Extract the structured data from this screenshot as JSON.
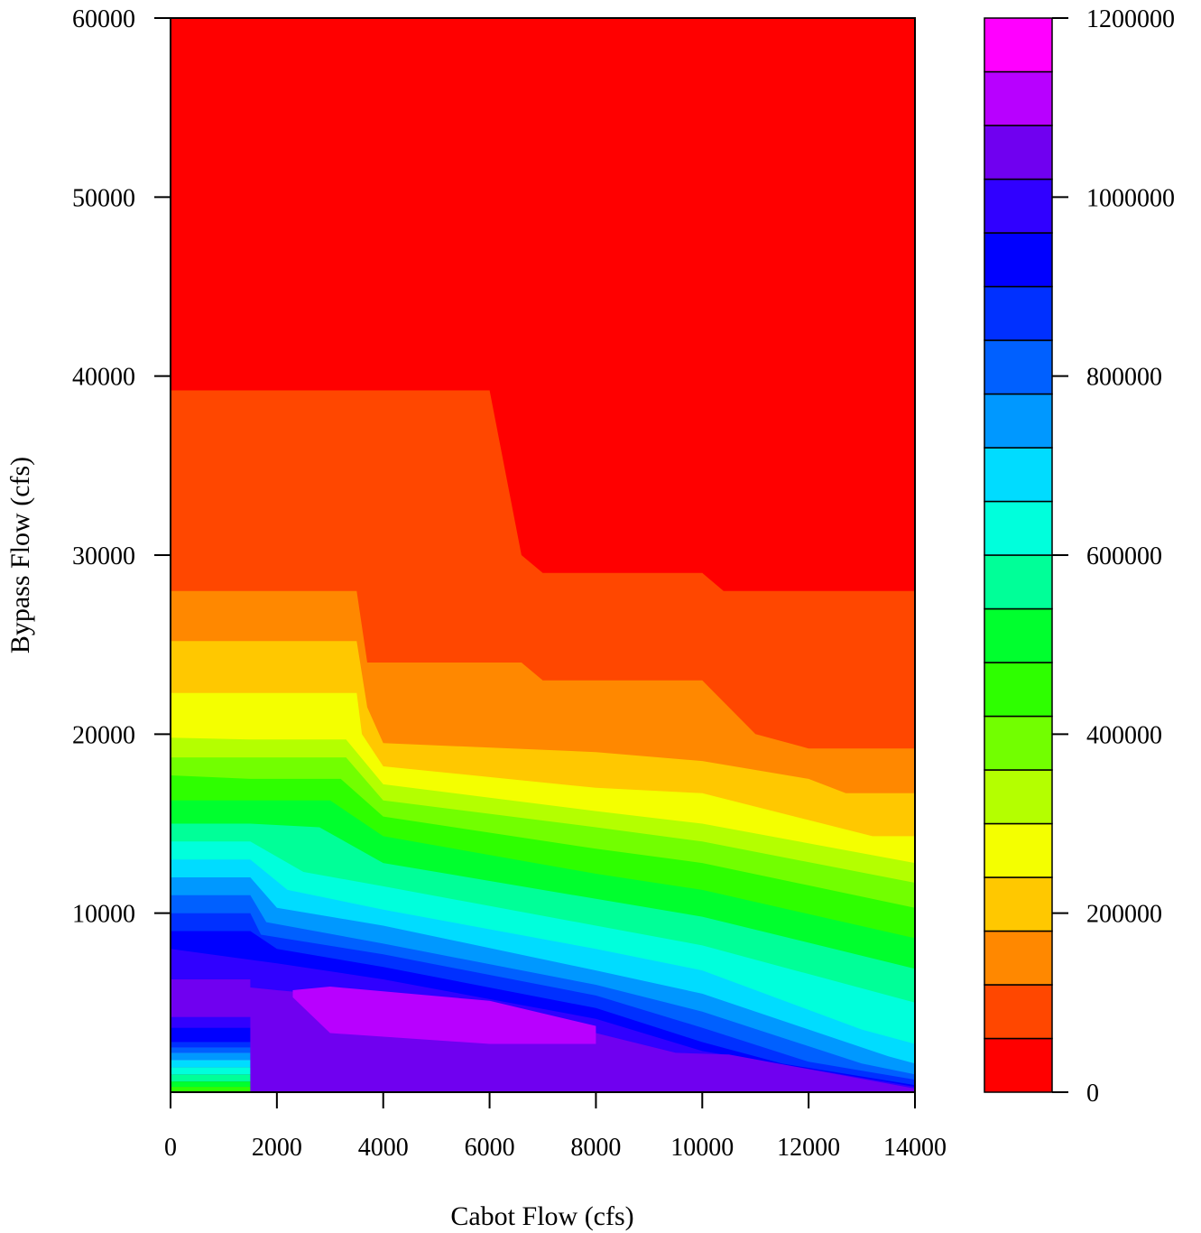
{
  "chart_data": {
    "type": "heatmap",
    "subtype": "filled-contour",
    "title": "",
    "xlabel": "Cabot Flow (cfs)",
    "ylabel": "Bypass Flow (cfs)",
    "xlim": [
      0,
      14000
    ],
    "ylim": [
      0,
      60000
    ],
    "x_ticks": [
      "0",
      "2000",
      "4000",
      "6000",
      "8000",
      "10000",
      "12000",
      "14000"
    ],
    "y_ticks": [
      "10000",
      "20000",
      "30000",
      "40000",
      "50000",
      "60000"
    ],
    "grid": false,
    "colorbar": {
      "placement": "right",
      "range": [
        0,
        1200000
      ],
      "step": 60000,
      "ticks": [
        "0",
        "200000",
        "400000",
        "600000",
        "800000",
        "1000000",
        "1200000"
      ],
      "colors": [
        "#FF0000",
        "#FF4700",
        "#FF8800",
        "#FFC800",
        "#F4FF00",
        "#B4FF00",
        "#72FF00",
        "#2EFF00",
        "#00FF2E",
        "#00FF98",
        "#00FFDC",
        "#00DCFF",
        "#0098FF",
        "#0060FF",
        "#0030FF",
        "#0000FF",
        "#3000FF",
        "#7000F0",
        "#B800FF",
        "#FF00FF"
      ]
    },
    "level_boundaries": [
      {
        "level": 0,
        "y_at_x": [
          [
            0,
            60000
          ],
          [
            14000,
            60000
          ]
        ]
      },
      {
        "level": 1,
        "y_at_x": [
          [
            0,
            39200
          ],
          [
            6000,
            39200
          ],
          [
            6600,
            30000
          ],
          [
            7000,
            29000
          ],
          [
            10000,
            29000
          ],
          [
            10400,
            28000
          ],
          [
            14000,
            28000
          ]
        ]
      },
      {
        "level": 2,
        "y_at_x": [
          [
            0,
            28000
          ],
          [
            3500,
            28000
          ],
          [
            3700,
            24000
          ],
          [
            6600,
            24000
          ],
          [
            7000,
            23000
          ],
          [
            10000,
            23000
          ],
          [
            11000,
            20000
          ],
          [
            12000,
            19200
          ],
          [
            14000,
            19200
          ]
        ]
      },
      {
        "level": 3,
        "y_at_x": [
          [
            0,
            25200
          ],
          [
            3500,
            25200
          ],
          [
            3700,
            21500
          ],
          [
            4000,
            19500
          ],
          [
            8000,
            19000
          ],
          [
            10000,
            18500
          ],
          [
            12000,
            17500
          ],
          [
            12700,
            16700
          ],
          [
            14000,
            16700
          ]
        ]
      },
      {
        "level": 4,
        "y_at_x": [
          [
            0,
            22300
          ],
          [
            3500,
            22300
          ],
          [
            3600,
            20000
          ],
          [
            4000,
            18200
          ],
          [
            8000,
            17000
          ],
          [
            10000,
            16700
          ],
          [
            12000,
            15200
          ],
          [
            13200,
            14300
          ],
          [
            14000,
            14300
          ]
        ]
      },
      {
        "level": 5,
        "y_at_x": [
          [
            0,
            19800
          ],
          [
            1500,
            19700
          ],
          [
            3300,
            19700
          ],
          [
            4000,
            17200
          ],
          [
            8000,
            15700
          ],
          [
            10000,
            15000
          ],
          [
            14000,
            12800
          ]
        ]
      },
      {
        "level": 6,
        "y_at_x": [
          [
            0,
            18700
          ],
          [
            1500,
            18700
          ],
          [
            3300,
            18700
          ],
          [
            4000,
            16300
          ],
          [
            8000,
            14800
          ],
          [
            10000,
            14000
          ],
          [
            14000,
            11700
          ]
        ]
      },
      {
        "level": 7,
        "y_at_x": [
          [
            0,
            17700
          ],
          [
            1500,
            17500
          ],
          [
            3200,
            17500
          ],
          [
            4000,
            15400
          ],
          [
            8000,
            13600
          ],
          [
            10000,
            12800
          ],
          [
            14000,
            10300
          ]
        ]
      },
      {
        "level": 8,
        "y_at_x": [
          [
            0,
            16300
          ],
          [
            1500,
            16300
          ],
          [
            3000,
            16300
          ],
          [
            4000,
            14300
          ],
          [
            8000,
            12200
          ],
          [
            10000,
            11300
          ],
          [
            14000,
            8600
          ]
        ]
      },
      {
        "level": 9,
        "y_at_x": [
          [
            0,
            15000
          ],
          [
            1500,
            15000
          ],
          [
            2800,
            14800
          ],
          [
            4000,
            12800
          ],
          [
            8000,
            10800
          ],
          [
            10000,
            9800
          ],
          [
            14000,
            6900
          ]
        ]
      },
      {
        "level": 10,
        "y_at_x": [
          [
            0,
            14000
          ],
          [
            1500,
            14000
          ],
          [
            2500,
            12300
          ],
          [
            4000,
            11500
          ],
          [
            8000,
            9300
          ],
          [
            10000,
            8200
          ],
          [
            14000,
            5000
          ]
        ]
      },
      {
        "level": 11,
        "y_at_x": [
          [
            0,
            13000
          ],
          [
            1500,
            13000
          ],
          [
            2200,
            11300
          ],
          [
            4000,
            10200
          ],
          [
            8000,
            8000
          ],
          [
            10000,
            6800
          ],
          [
            13000,
            3500
          ],
          [
            14000,
            2700
          ]
        ]
      },
      {
        "level": 12,
        "y_at_x": [
          [
            0,
            12000
          ],
          [
            1500,
            12000
          ],
          [
            2000,
            10300
          ],
          [
            4000,
            9300
          ],
          [
            8000,
            6800
          ],
          [
            10000,
            5500
          ],
          [
            13500,
            2000
          ],
          [
            14000,
            1600
          ]
        ]
      },
      {
        "level": 13,
        "y_at_x": [
          [
            0,
            11000
          ],
          [
            1500,
            11000
          ],
          [
            1800,
            9500
          ],
          [
            4000,
            8300
          ],
          [
            8000,
            6000
          ],
          [
            10000,
            4500
          ],
          [
            13000,
            1600
          ],
          [
            14000,
            1000
          ]
        ]
      },
      {
        "level": 14,
        "y_at_x": [
          [
            0,
            10000
          ],
          [
            1500,
            10000
          ],
          [
            1700,
            8800
          ],
          [
            4000,
            7700
          ],
          [
            8000,
            5400
          ],
          [
            10000,
            3600
          ],
          [
            12000,
            1700
          ],
          [
            14000,
            700
          ]
        ]
      },
      {
        "level": 15,
        "y_at_x": [
          [
            0,
            9000
          ],
          [
            1500,
            9000
          ],
          [
            2000,
            8000
          ],
          [
            4000,
            7000
          ],
          [
            8000,
            4700
          ],
          [
            10000,
            2800
          ],
          [
            11500,
            1600
          ],
          [
            14000,
            400
          ]
        ]
      },
      {
        "level": 16,
        "y_at_x": [
          [
            0,
            8000
          ],
          [
            2000,
            7200
          ],
          [
            4000,
            6300
          ],
          [
            8000,
            4100
          ],
          [
            10000,
            2300
          ],
          [
            11000,
            1800
          ],
          [
            14000,
            300
          ]
        ]
      },
      {
        "level": 17,
        "y_at_x": [
          [
            0,
            6300
          ],
          [
            2000,
            5700
          ],
          [
            5000,
            4900
          ],
          [
            8000,
            3300
          ],
          [
            9500,
            2200
          ],
          [
            10500,
            2100
          ],
          [
            14000,
            200
          ]
        ]
      }
    ],
    "bottom_bands": [
      {
        "level": 17,
        "y_range": [
          4200,
          6300
        ]
      },
      {
        "level": 16,
        "y_range": [
          3600,
          4200
        ]
      },
      {
        "level": 15,
        "y_range": [
          2800,
          3600
        ]
      },
      {
        "level": 14,
        "y_range": [
          2500,
          2800
        ]
      },
      {
        "level": 13,
        "y_range": [
          2200,
          2500
        ]
      },
      {
        "level": 12,
        "y_range": [
          1800,
          2200
        ]
      },
      {
        "level": 11,
        "y_range": [
          1400,
          1800
        ]
      },
      {
        "level": 10,
        "y_range": [
          1000,
          1400
        ]
      },
      {
        "level": 9,
        "y_range": [
          600,
          1000
        ]
      },
      {
        "level": 8,
        "y_range": [
          300,
          600
        ]
      },
      {
        "level": 7,
        "y_range": [
          0,
          300
        ]
      }
    ],
    "peak_region": {
      "level": 18,
      "outline": [
        [
          2300,
          5700
        ],
        [
          3000,
          5900
        ],
        [
          6000,
          5100
        ],
        [
          8000,
          3700
        ],
        [
          8000,
          2700
        ],
        [
          6000,
          2700
        ],
        [
          3000,
          3300
        ],
        [
          2300,
          5300
        ]
      ]
    }
  }
}
